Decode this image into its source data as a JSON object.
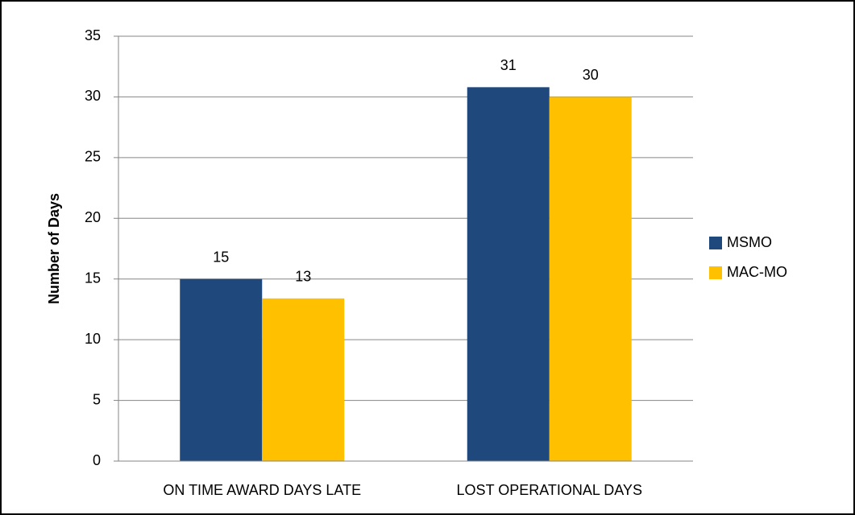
{
  "chart_data": {
    "type": "bar",
    "y_label": "Number of Days",
    "categories": [
      "ON TIME AWARD DAYS LATE",
      "LOST OPERATIONAL DAYS"
    ],
    "series": [
      {
        "name": "MSMO",
        "color": "#1f497d",
        "values": [
          15,
          30.8
        ],
        "value_labels": [
          "15",
          "31"
        ]
      },
      {
        "name": "MAC-MO",
        "color": "#ffc000",
        "values": [
          13.4,
          30
        ],
        "value_labels": [
          "13",
          "30"
        ]
      }
    ],
    "ylim": [
      0,
      35
    ],
    "yticks": [
      0,
      5,
      10,
      15,
      20,
      25,
      30,
      35
    ],
    "grid": true,
    "legend": "right"
  }
}
